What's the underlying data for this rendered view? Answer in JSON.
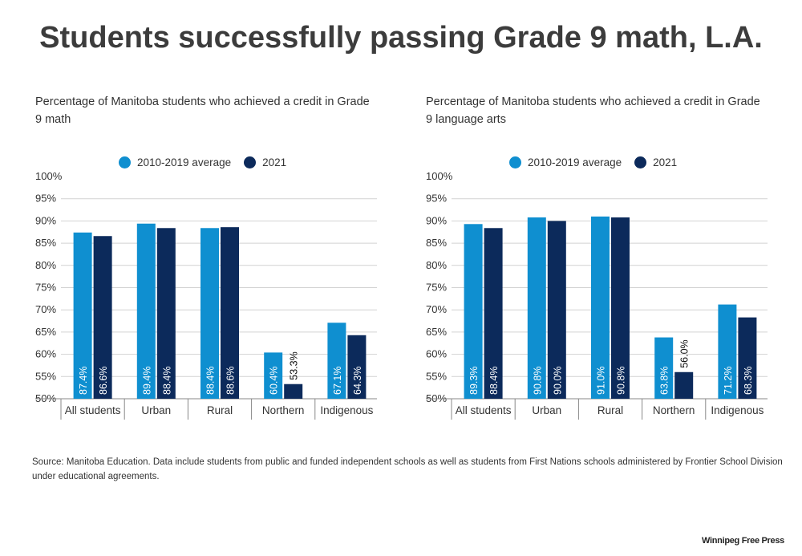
{
  "title": "Students successfully passing Grade 9 math, L.A.",
  "legend": [
    {
      "label": "2010-2019 average",
      "color": "#0f8fd0"
    },
    {
      "label": "2021",
      "color": "#0c2a5b"
    }
  ],
  "chart_data": [
    {
      "type": "bar",
      "subtitle": "Percentage of Manitoba students who achieved a credit in Grade 9 math",
      "categories": [
        "All students",
        "Urban",
        "Rural",
        "Northern",
        "Indigenous"
      ],
      "series": [
        {
          "name": "2010-2019 average",
          "values": [
            87.4,
            89.4,
            88.4,
            60.4,
            67.1
          ],
          "labels": [
            "87.4%",
            "89.4%",
            "88.4%",
            "60.4%",
            "67.1%"
          ]
        },
        {
          "name": "2021",
          "values": [
            86.6,
            88.4,
            88.6,
            53.3,
            64.3
          ],
          "labels": [
            "86.6%",
            "88.4%",
            "88.6%",
            "53.3%",
            "64.3%"
          ]
        }
      ],
      "yticks": [
        "100%",
        "95%",
        "90%",
        "85%",
        "80%",
        "75%",
        "70%",
        "65%",
        "60%",
        "55%",
        "50%"
      ],
      "ylim": [
        50,
        100
      ],
      "grid": true
    },
    {
      "type": "bar",
      "subtitle": "Percentage of Manitoba students who achieved a credit in Grade 9 language arts",
      "categories": [
        "All students",
        "Urban",
        "Rural",
        "Northern",
        "Indigenous"
      ],
      "series": [
        {
          "name": "2010-2019 average",
          "values": [
            89.3,
            90.8,
            91.0,
            63.8,
            71.2
          ],
          "labels": [
            "89.3%",
            "90.8%",
            "91.0%",
            "63.8%",
            "71.2%"
          ]
        },
        {
          "name": "2021",
          "values": [
            88.4,
            90.0,
            90.8,
            56.0,
            68.3
          ],
          "labels": [
            "88.4%",
            "90.0%",
            "90.8%",
            "56.0%",
            "68.3%"
          ]
        }
      ],
      "yticks": [
        "100%",
        "95%",
        "90%",
        "85%",
        "80%",
        "75%",
        "70%",
        "65%",
        "60%",
        "55%",
        "50%"
      ],
      "ylim": [
        50,
        100
      ],
      "grid": true
    }
  ],
  "source": "Source: Manitoba Education. Data include students from public and funded independent schools as well as students from First Nations schools administered by Frontier School Division under educational agreements.",
  "brand": "Winnipeg Free Press"
}
